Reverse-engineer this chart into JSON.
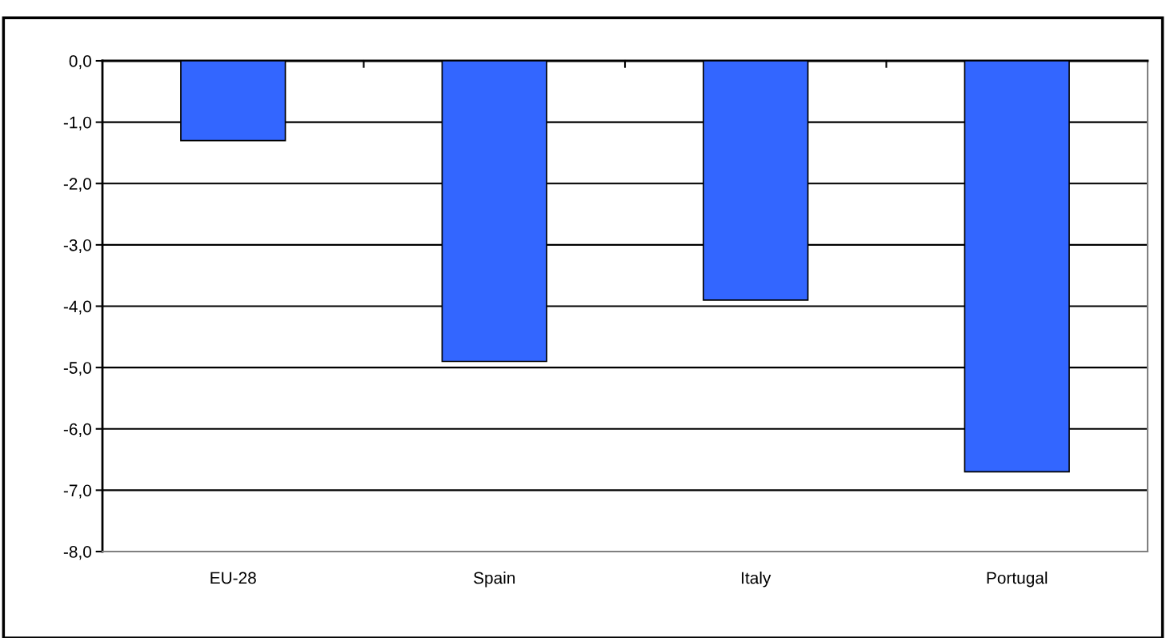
{
  "chart_data": {
    "type": "bar",
    "categories": [
      "EU-28",
      "Spain",
      "Italy",
      "Portugal"
    ],
    "values": [
      -1.3,
      -4.9,
      -3.9,
      -6.7
    ],
    "color": "#3366ff",
    "ylim": [
      -8,
      0
    ],
    "yticks": [
      {
        "value": 0,
        "label": "0,0"
      },
      {
        "value": -1,
        "label": "-1,0"
      },
      {
        "value": -2,
        "label": "-2,0"
      },
      {
        "value": -3,
        "label": "-3,0"
      },
      {
        "value": -4,
        "label": "-4,0"
      },
      {
        "value": -5,
        "label": "-5,0"
      },
      {
        "value": -6,
        "label": "-6,0"
      },
      {
        "value": -7,
        "label": "-7,0"
      },
      {
        "value": -8,
        "label": "-8,0"
      }
    ],
    "grid": "y",
    "legend": false
  }
}
